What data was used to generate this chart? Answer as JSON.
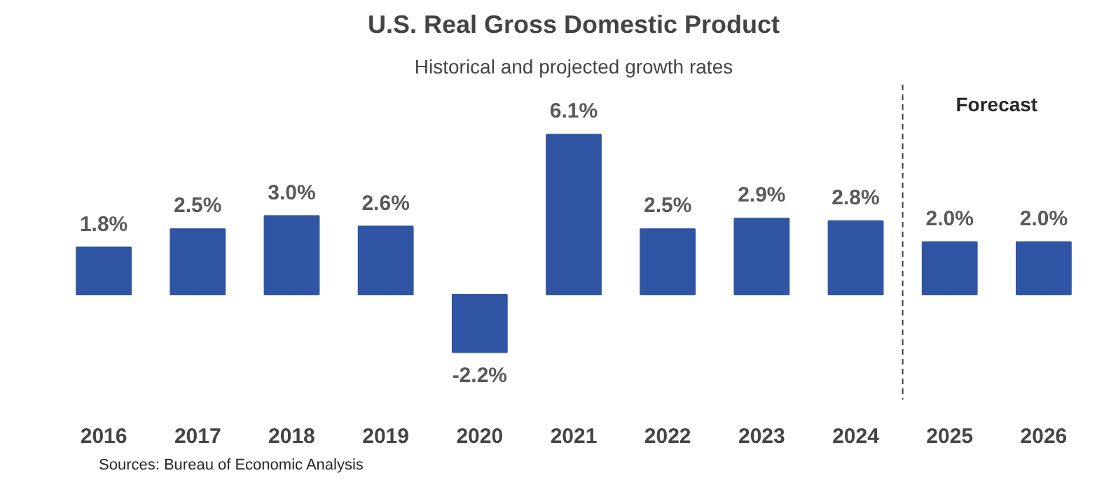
{
  "chart_data": {
    "type": "bar",
    "title": "U.S. Real Gross Domestic Product",
    "subtitle": "Historical and projected growth rates",
    "categories": [
      "2016",
      "2017",
      "2018",
      "2019",
      "2020",
      "2021",
      "2022",
      "2023",
      "2024",
      "2025",
      "2026"
    ],
    "values": [
      1.8,
      2.5,
      3.0,
      2.6,
      -2.2,
      6.1,
      2.5,
      2.9,
      2.8,
      2.0,
      2.0
    ],
    "value_labels": [
      "1.8%",
      "2.5%",
      "3.0%",
      "2.6%",
      "-2.2%",
      "6.1%",
      "2.5%",
      "2.9%",
      "2.8%",
      "2.0%",
      "2.0%"
    ],
    "color": "#2f55a4",
    "tick_labels": "x",
    "annotations": [
      "Forecast",
      "Sources: Bureau of Economic Analysis"
    ]
  }
}
